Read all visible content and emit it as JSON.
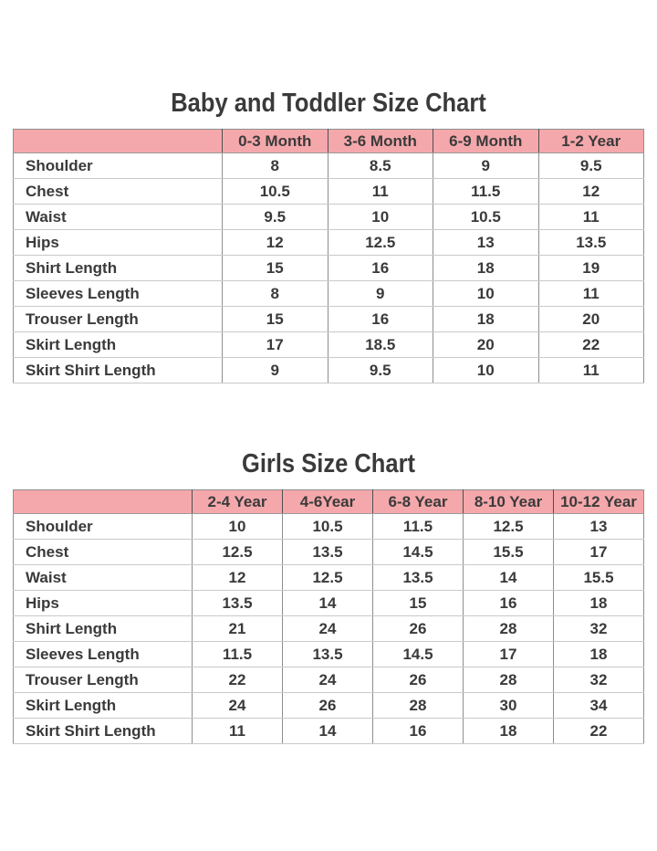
{
  "colors": {
    "page_bg": "#ffffff",
    "header_bg": "#f5a8ab",
    "text": "#3a3a3a",
    "grid_line": "#8e8e8e",
    "row_line": "#c9c9c9"
  },
  "tables": [
    {
      "title": "Baby and Toddler Size Chart",
      "columns": [
        "0-3 Month",
        "3-6 Month",
        "6-9 Month",
        "1-2 Year"
      ],
      "rows": [
        {
          "label": "Shoulder",
          "values": [
            "8",
            "8.5",
            "9",
            "9.5"
          ]
        },
        {
          "label": "Chest",
          "values": [
            "10.5",
            "11",
            "11.5",
            "12"
          ]
        },
        {
          "label": "Waist",
          "values": [
            "9.5",
            "10",
            "10.5",
            "11"
          ]
        },
        {
          "label": "Hips",
          "values": [
            "12",
            "12.5",
            "13",
            "13.5"
          ]
        },
        {
          "label": "Shirt Length",
          "values": [
            "15",
            "16",
            "18",
            "19"
          ]
        },
        {
          "label": "Sleeves Length",
          "values": [
            "8",
            "9",
            "10",
            "11"
          ]
        },
        {
          "label": "Trouser Length",
          "values": [
            "15",
            "16",
            "18",
            "20"
          ]
        },
        {
          "label": "Skirt Length",
          "values": [
            "17",
            "18.5",
            "20",
            "22"
          ]
        },
        {
          "label": "Skirt Shirt Length",
          "values": [
            "9",
            "9.5",
            "10",
            "11"
          ]
        }
      ]
    },
    {
      "title": "Girls Size Chart",
      "columns": [
        "2-4 Year",
        "4-6Year",
        "6-8 Year",
        "8-10 Year",
        "10-12 Year"
      ],
      "rows": [
        {
          "label": "Shoulder",
          "values": [
            "10",
            "10.5",
            "11.5",
            "12.5",
            "13"
          ]
        },
        {
          "label": "Chest",
          "values": [
            "12.5",
            "13.5",
            "14.5",
            "15.5",
            "17"
          ]
        },
        {
          "label": "Waist",
          "values": [
            "12",
            "12.5",
            "13.5",
            "14",
            "15.5"
          ]
        },
        {
          "label": "Hips",
          "values": [
            "13.5",
            "14",
            "15",
            "16",
            "18"
          ]
        },
        {
          "label": "Shirt Length",
          "values": [
            "21",
            "24",
            "26",
            "28",
            "32"
          ]
        },
        {
          "label": "Sleeves Length",
          "values": [
            "11.5",
            "13.5",
            "14.5",
            "17",
            "18"
          ]
        },
        {
          "label": "Trouser Length",
          "values": [
            "22",
            "24",
            "26",
            "28",
            "32"
          ]
        },
        {
          "label": "Skirt Length",
          "values": [
            "24",
            "26",
            "28",
            "30",
            "34"
          ]
        },
        {
          "label": "Skirt Shirt Length",
          "values": [
            "11",
            "14",
            "16",
            "18",
            "22"
          ]
        }
      ]
    }
  ]
}
